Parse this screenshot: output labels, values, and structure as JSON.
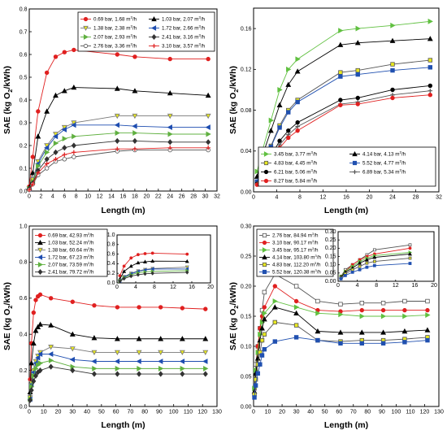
{
  "figure": {
    "xlabel": "Length (m)",
    "ylabel": "SAE (kg O2/kWh)"
  },
  "chart_data": [
    {
      "type": "line",
      "xlabel": "Length (m)",
      "ylabel": "SAE (kg O2/kWh)",
      "xlim": [
        0,
        32
      ],
      "ylim": [
        0,
        0.8
      ],
      "xticks": [
        0,
        2,
        4,
        6,
        8,
        10,
        12,
        14,
        16,
        18,
        20,
        22,
        24,
        26,
        28,
        30,
        32
      ],
      "yticks": [
        0,
        0.1,
        0.2,
        0.3,
        0.4,
        0.5,
        0.6,
        0.7,
        0.8
      ],
      "legend_position": "top-right",
      "legend_columns": 2,
      "x": [
        0,
        0.6,
        1.5,
        3,
        4.5,
        6,
        7.6,
        15,
        18,
        24,
        30.5
      ],
      "series": [
        {
          "name": "0.69 bar, 1.68 m3/h",
          "color": "#e02020",
          "marker": "circle",
          "fill": "#e02020",
          "values": [
            0.02,
            0.15,
            0.35,
            0.52,
            0.59,
            0.61,
            0.62,
            0.6,
            0.59,
            0.58,
            0.58
          ]
        },
        {
          "name": "1.03 bar, 2.07 m3/h",
          "color": "#000000",
          "marker": "triangle-up",
          "fill": "#000000",
          "values": [
            0.015,
            0.08,
            0.24,
            0.35,
            0.42,
            0.44,
            0.455,
            0.45,
            0.44,
            0.43,
            0.42
          ]
        },
        {
          "name": "1.38 bar, 2.38 m3/h",
          "color": "#777777",
          "marker": "triangle-down",
          "fill": "#e8e820",
          "values": [
            0.01,
            0.05,
            0.13,
            0.2,
            0.25,
            0.28,
            0.3,
            0.33,
            0.33,
            0.33,
            0.33
          ]
        },
        {
          "name": "1.72 bar, 2.66 m3/h",
          "color": "#1e4db0",
          "marker": "triangle-left",
          "fill": "#1e4db0",
          "values": [
            0.01,
            0.04,
            0.12,
            0.19,
            0.24,
            0.27,
            0.29,
            0.29,
            0.285,
            0.28,
            0.28
          ]
        },
        {
          "name": "2.07 bar, 2.93 m3/h",
          "color": "#60b040",
          "marker": "triangle-right",
          "fill": "#60b040",
          "values": [
            0.01,
            0.04,
            0.11,
            0.17,
            0.21,
            0.23,
            0.24,
            0.255,
            0.255,
            0.25,
            0.25
          ]
        },
        {
          "name": "2.41 bar, 3.16 m3/h",
          "color": "#333333",
          "marker": "diamond",
          "fill": "#333333",
          "values": [
            0.01,
            0.035,
            0.09,
            0.14,
            0.17,
            0.19,
            0.2,
            0.22,
            0.22,
            0.215,
            0.215
          ]
        },
        {
          "name": "2.76 bar, 3.36 m3/h",
          "color": "#555555",
          "marker": "circle",
          "fill": "#ffffff",
          "values": [
            0.005,
            0.03,
            0.07,
            0.1,
            0.13,
            0.14,
            0.15,
            0.175,
            0.18,
            0.18,
            0.18
          ]
        },
        {
          "name": "3.10 bar, 3.57 m3/h",
          "color": "#e02020",
          "marker": "plus",
          "fill": "#e02020",
          "values": [
            0.005,
            0.03,
            0.08,
            0.12,
            0.14,
            0.16,
            0.17,
            0.185,
            0.185,
            0.19,
            0.19
          ]
        }
      ]
    },
    {
      "type": "line",
      "xlabel": "Length (m)",
      "ylabel": "SAE (kg O2/kWh)",
      "xlim": [
        0,
        32
      ],
      "ylim": [
        0,
        0.18
      ],
      "xticks": [
        0,
        4,
        8,
        12,
        16,
        20,
        24,
        28,
        32
      ],
      "yticks": [
        0,
        0.04,
        0.08,
        0.12,
        0.16
      ],
      "legend_position": "bottom-center",
      "legend_columns": 2,
      "x": [
        0.6,
        1.5,
        3,
        4.5,
        6,
        7.6,
        15,
        18,
        24,
        30.5
      ],
      "series": [
        {
          "name": "3.45 bar, 3.77 m3/h",
          "color": "#60c040",
          "marker": "triangle-right",
          "fill": "#60c040",
          "values": [
            0.02,
            0.04,
            0.07,
            0.1,
            0.12,
            0.13,
            0.158,
            0.16,
            0.163,
            0.167
          ]
        },
        {
          "name": "4.14 bar, 4.13 m3/h",
          "color": "#000000",
          "marker": "triangle-up",
          "fill": "#000000",
          "values": [
            0.015,
            0.035,
            0.06,
            0.085,
            0.105,
            0.118,
            0.144,
            0.146,
            0.148,
            0.15
          ]
        },
        {
          "name": "4.83 bar, 4.45 m3/h",
          "color": "#555555",
          "marker": "square",
          "fill": "#e8e820",
          "values": [
            0.01,
            0.025,
            0.045,
            0.065,
            0.08,
            0.09,
            0.117,
            0.119,
            0.125,
            0.129
          ]
        },
        {
          "name": "5.52 bar, 4.77 m3/h",
          "color": "#2050b0",
          "marker": "square",
          "fill": "#2050b0",
          "values": [
            0.01,
            0.024,
            0.044,
            0.063,
            0.078,
            0.088,
            0.113,
            0.115,
            0.119,
            0.122
          ]
        },
        {
          "name": "6.21 bar, 5.06 m3/h",
          "color": "#000000",
          "marker": "circle",
          "fill": "#000000",
          "values": [
            0.008,
            0.018,
            0.035,
            0.05,
            0.06,
            0.068,
            0.09,
            0.092,
            0.1,
            0.104
          ]
        },
        {
          "name": "6.89 bar, 5.34 m3/h",
          "color": "#555555",
          "marker": "plus",
          "fill": "#555555",
          "values": [
            0.008,
            0.017,
            0.032,
            0.046,
            0.056,
            0.064,
            0.086,
            0.088,
            0.095,
            0.099
          ]
        },
        {
          "name": "8.27 bar, 5.84 m3/h",
          "color": "#e02020",
          "marker": "circle",
          "fill": "#e02020",
          "values": [
            0.007,
            0.015,
            0.03,
            0.043,
            0.053,
            0.06,
            0.085,
            0.086,
            0.092,
            0.095
          ]
        }
      ]
    },
    {
      "type": "line",
      "xlabel": "Length (m)",
      "ylabel": "SAE (kg O2/kWh)",
      "xlim": [
        0,
        130
      ],
      "ylim": [
        0,
        1.0
      ],
      "xticks": [
        0,
        10,
        20,
        30,
        40,
        50,
        60,
        70,
        80,
        90,
        100,
        110,
        120,
        130
      ],
      "yticks": [
        0,
        0.2,
        0.4,
        0.6,
        0.8,
        1.0
      ],
      "legend_position": "top-left",
      "x": [
        0.6,
        1.5,
        3,
        4.5,
        6,
        7.6,
        15,
        30,
        45,
        61,
        76,
        91,
        106,
        122
      ],
      "inset": {
        "xlim": [
          0,
          20
        ],
        "ylim": [
          0,
          1.0
        ],
        "xticks": [
          0,
          4,
          8,
          12,
          16,
          20
        ],
        "yticks": [
          0,
          0.2,
          0.4,
          0.6,
          0.8,
          1.0
        ]
      },
      "series": [
        {
          "name": "0.69 bar, 42.93 m3/h",
          "color": "#e02020",
          "marker": "circle",
          "fill": "#e02020",
          "values": [
            0.15,
            0.35,
            0.52,
            0.59,
            0.61,
            0.62,
            0.6,
            0.58,
            0.56,
            0.55,
            0.55,
            0.55,
            0.545,
            0.54
          ]
        },
        {
          "name": "1.03 bar, 52.24 m3/h",
          "color": "#000000",
          "marker": "triangle-up",
          "fill": "#000000",
          "values": [
            0.08,
            0.24,
            0.35,
            0.42,
            0.44,
            0.455,
            0.45,
            0.4,
            0.38,
            0.375,
            0.375,
            0.375,
            0.375,
            0.375
          ]
        },
        {
          "name": "1.38 bar, 60.64 m3/h",
          "color": "#777777",
          "marker": "triangle-down",
          "fill": "#e8e820",
          "values": [
            0.05,
            0.13,
            0.2,
            0.25,
            0.28,
            0.3,
            0.33,
            0.32,
            0.3,
            0.3,
            0.3,
            0.3,
            0.3,
            0.3
          ]
        },
        {
          "name": "1.72 bar, 67.23 m3/h",
          "color": "#1e4db0",
          "marker": "triangle-left",
          "fill": "#1e4db0",
          "values": [
            0.04,
            0.12,
            0.19,
            0.24,
            0.27,
            0.29,
            0.29,
            0.26,
            0.25,
            0.25,
            0.25,
            0.25,
            0.25,
            0.25
          ]
        },
        {
          "name": "2.07 bar, 73.59 m3/h",
          "color": "#60b040",
          "marker": "triangle-right",
          "fill": "#60b040",
          "values": [
            0.04,
            0.11,
            0.17,
            0.21,
            0.23,
            0.24,
            0.255,
            0.22,
            0.21,
            0.21,
            0.21,
            0.21,
            0.21,
            0.21
          ]
        },
        {
          "name": "2.41 bar, 79.72 m3/h",
          "color": "#333333",
          "marker": "diamond",
          "fill": "#333333",
          "values": [
            0.035,
            0.09,
            0.14,
            0.17,
            0.19,
            0.2,
            0.22,
            0.2,
            0.18,
            0.18,
            0.18,
            0.18,
            0.18,
            0.18
          ]
        }
      ]
    },
    {
      "type": "line",
      "xlabel": "Length (m)",
      "ylabel": "SAE (kg O2/kWh)",
      "xlim": [
        0,
        130
      ],
      "ylim": [
        0,
        0.3
      ],
      "xticks": [
        0,
        10,
        20,
        30,
        40,
        50,
        60,
        70,
        80,
        90,
        100,
        110,
        120,
        130
      ],
      "yticks": [
        0,
        0.05,
        0.1,
        0.15,
        0.2,
        0.25,
        0.3
      ],
      "legend_position": "top-left",
      "x": [
        0.6,
        1.5,
        3,
        4.5,
        6,
        7.6,
        15,
        30,
        45,
        61,
        76,
        91,
        106,
        122
      ],
      "inset": {
        "xlim": [
          0,
          20
        ],
        "ylim": [
          0,
          0.3
        ],
        "xticks": [
          0,
          4,
          8,
          12,
          16,
          20
        ],
        "yticks": [
          0,
          0.05,
          0.1,
          0.15,
          0.2,
          0.25,
          0.3
        ]
      },
      "series": [
        {
          "name": "2.76 bar, 84.94 m3/h",
          "color": "#555555",
          "marker": "square",
          "fill": "#ffffff",
          "values": [
            0.03,
            0.07,
            0.1,
            0.13,
            0.16,
            0.19,
            0.22,
            0.2,
            0.175,
            0.17,
            0.172,
            0.172,
            0.175,
            0.175
          ]
        },
        {
          "name": "3.10 bar, 90.17 m3/h",
          "color": "#e02020",
          "marker": "circle",
          "fill": "#e02020",
          "values": [
            0.03,
            0.06,
            0.1,
            0.13,
            0.15,
            0.165,
            0.2,
            0.175,
            0.16,
            0.158,
            0.16,
            0.16,
            0.16,
            0.16
          ]
        },
        {
          "name": "3.45 bar, 95.17 m3/h",
          "color": "#60c040",
          "marker": "triangle-right",
          "fill": "#60c040",
          "values": [
            0.03,
            0.06,
            0.09,
            0.12,
            0.14,
            0.155,
            0.175,
            0.165,
            0.155,
            0.153,
            0.15,
            0.15,
            0.15,
            0.152
          ]
        },
        {
          "name": "4.14 bar, 103.80 m3/h",
          "color": "#000000",
          "marker": "triangle-up",
          "fill": "#000000",
          "values": [
            0.025,
            0.055,
            0.08,
            0.11,
            0.13,
            0.145,
            0.165,
            0.155,
            0.125,
            0.123,
            0.123,
            0.123,
            0.125,
            0.127
          ]
        },
        {
          "name": "4.83 bar, 112.20 m3/h",
          "color": "#555555",
          "marker": "square",
          "fill": "#e8e820",
          "values": [
            0.02,
            0.045,
            0.07,
            0.09,
            0.11,
            0.12,
            0.14,
            0.135,
            0.11,
            0.108,
            0.11,
            0.11,
            0.112,
            0.115
          ]
        },
        {
          "name": "5.52 bar, 120.38 m3/h",
          "color": "#2050b0",
          "marker": "square",
          "fill": "#2050b0",
          "values": [
            0.015,
            0.035,
            0.055,
            0.07,
            0.085,
            0.095,
            0.108,
            0.115,
            0.11,
            0.105,
            0.105,
            0.105,
            0.107,
            0.11
          ]
        }
      ]
    }
  ]
}
